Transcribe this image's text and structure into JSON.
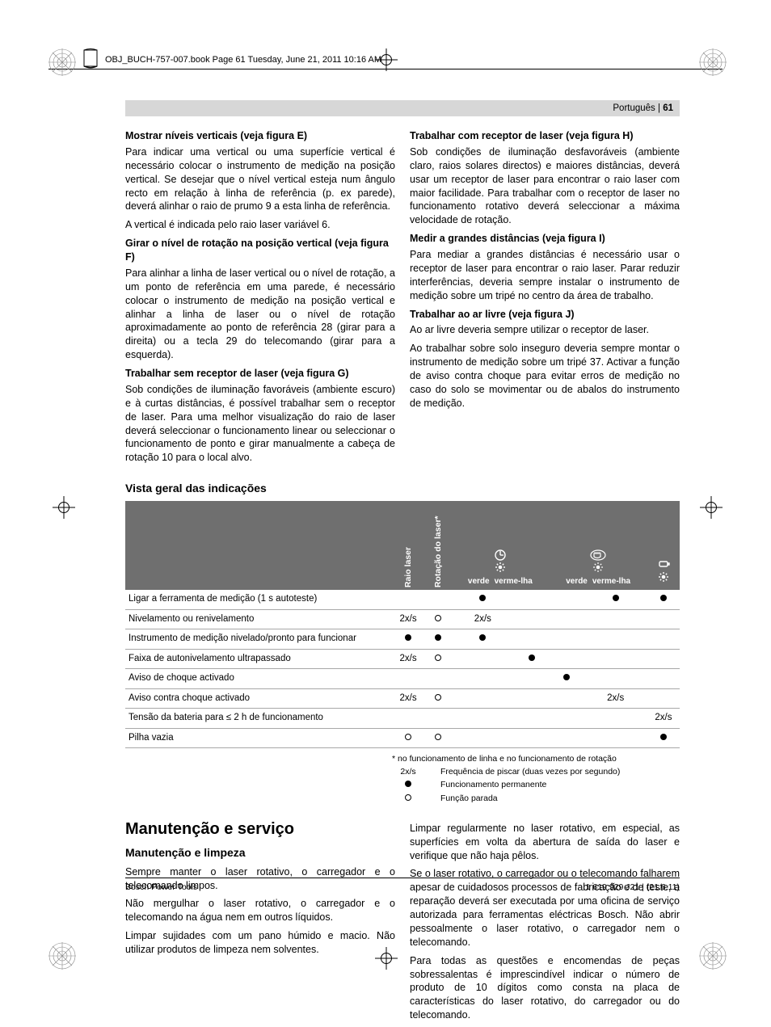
{
  "header": {
    "line": "OBJ_BUCH-757-007.book  Page 61  Tuesday, June 21, 2011  10:16 AM",
    "lang": "Português",
    "page": "61"
  },
  "left": {
    "s1_title": "Mostrar níveis verticais (veja figura E)",
    "s1_p1": "Para indicar uma vertical ou uma superfície vertical é necessário colocar o instrumento de medição na posição vertical. Se desejar que o nível vertical esteja num ângulo recto em relação à linha de referência (p. ex parede), deverá alinhar o raio de prumo 9 a esta linha de referência.",
    "s1_p2": "A vertical é indicada pelo raio laser variável 6.",
    "s2_title": "Girar o nível de rotação na posição vertical (veja figura F)",
    "s2_p1": "Para alinhar a linha de laser vertical ou o nível de rotação, a um ponto de referência em uma parede, é necessário colocar o instrumento de medição na posição vertical e alinhar a linha de laser ou o nível de rotação aproximadamente ao ponto de referência 28 (girar para a direita) ou a tecla 29 do telecomando (girar para a esquerda).",
    "s3_title": "Trabalhar sem receptor de laser (veja figura G)",
    "s3_p1": "Sob condições de iluminação favoráveis (ambiente escuro) e à curtas distâncias, é possível trabalhar sem o receptor de laser. Para uma melhor visualização do raio de laser deverá seleccionar o funcionamento linear ou seleccionar o funcionamento de ponto e girar manualmente a cabeça de rotação 10 para o local alvo."
  },
  "right": {
    "s1_title": "Trabalhar com receptor de laser (veja figura H)",
    "s1_p1": "Sob condições de iluminação desfavoráveis (ambiente claro, raios solares directos) e maiores distâncias, deverá usar um receptor de laser para encontrar o raio laser com maior facilidade. Para trabalhar com o receptor de laser no funcionamento rotativo deverá seleccionar a máxima velocidade de rotação.",
    "s2_title": "Medir a grandes distâncias (veja figura I)",
    "s2_p1": "Para mediar a grandes distâncias é necessário usar o receptor de laser para encontrar o raio laser. Parar reduzir interferências, deveria sempre instalar o instrumento de medição sobre um tripé no centro da área de trabalho.",
    "s3_title": "Trabalhar ao ar livre (veja figura J)",
    "s3_p1": "Ao ar livre deveria sempre utilizar o receptor de laser.",
    "s3_p2": "Ao trabalhar sobre solo inseguro deveria sempre montar o instrumento de medição sobre um tripé 37. Activar a função de aviso contra choque para evitar erros de medição no caso do solo se movimentar ou de abalos do instrumento de medição."
  },
  "table": {
    "heading": "Vista geral das indicações",
    "cols": {
      "c0": "",
      "c1": "Raio laser",
      "c2": "Rotação do laser*",
      "c3g": "verde",
      "c3r": "verme-lha",
      "c4g": "verde",
      "c4r": "verme-lha"
    },
    "rows": [
      {
        "label": "Ligar a ferramenta de medição (1 s autoteste)",
        "c1": "",
        "c2": "",
        "c3g": "dot",
        "c3r": "",
        "c4g": "",
        "c4r": "dot",
        "c5": "dot"
      },
      {
        "label": "Nivelamento ou renivelamento",
        "c1": "2x/s",
        "c2": "ring",
        "c3g": "2x/s",
        "c3r": "",
        "c4g": "",
        "c4r": "",
        "c5": ""
      },
      {
        "label": "Instrumento de medição nivelado/pronto para funcionar",
        "c1": "dot",
        "c2": "dot",
        "c3g": "dot",
        "c3r": "",
        "c4g": "",
        "c4r": "",
        "c5": ""
      },
      {
        "label": "Faixa de autonivelamento ultrapassado",
        "c1": "2x/s",
        "c2": "ring",
        "c3g": "",
        "c3r": "dot",
        "c4g": "",
        "c4r": "",
        "c5": ""
      },
      {
        "label": "Aviso de choque activado",
        "c1": "",
        "c2": "",
        "c3g": "",
        "c3r": "",
        "c4g": "dot",
        "c4r": "",
        "c5": ""
      },
      {
        "label": "Aviso contra choque activado",
        "c1": "2x/s",
        "c2": "ring",
        "c3g": "",
        "c3r": "",
        "c4g": "",
        "c4r": "2x/s",
        "c5": ""
      },
      {
        "label": "Tensão da bateria para ≤ 2 h de funcionamento",
        "c1": "",
        "c2": "",
        "c3g": "",
        "c3r": "",
        "c4g": "",
        "c4r": "",
        "c5": "2x/s"
      },
      {
        "label": "Pilha vazia",
        "c1": "ring",
        "c2": "ring",
        "c3g": "",
        "c3r": "",
        "c4g": "",
        "c4r": "",
        "c5": "dot"
      }
    ],
    "footnote": "* no funcionamento de linha e no funcionamento de rotação",
    "legend": [
      {
        "sym": "2x/s",
        "text": "Frequência de piscar (duas vezes por segundo)"
      },
      {
        "sym": "dot",
        "text": "Funcionamento permanente"
      },
      {
        "sym": "ring",
        "text": "Função parada"
      }
    ]
  },
  "maint": {
    "h2": "Manutenção e serviço",
    "left": {
      "h3": "Manutenção e limpeza",
      "p1": "Sempre manter o laser rotativo, o carregador e o telecomando limpos.",
      "p2": "Não mergulhar o laser rotativo, o carregador e o telecomando na água nem em outros líquidos.",
      "p3": "Limpar sujidades com um pano húmido e macio. Não utilizar produtos de limpeza nem solventes."
    },
    "right": {
      "p1": "Limpar regularmente no laser rotativo, em especial, as superfícies em volta da abertura de saída do laser e verifique que não haja pêlos.",
      "p2": "Se o laser rotativo, o carregador ou o telecomando falharem apesar de cuidadosos processos de fabricação e de teste, a reparação deverá ser executada por uma oficina de serviço autorizada para ferramentas eléctricas Bosch. Não abrir pessoalmente o laser rotativo, o carregador nem o telecomando.",
      "p3": "Para todas as questões e encomendas de peças sobressalentas é imprescindível indicar o número de produto de 10 dígitos como consta na placa de características do laser rotativo, do carregador ou do telecomando."
    }
  },
  "footer": {
    "left": "Bosch Power Tools",
    "right": "1 619 929 J21 | (21.6.11)"
  }
}
